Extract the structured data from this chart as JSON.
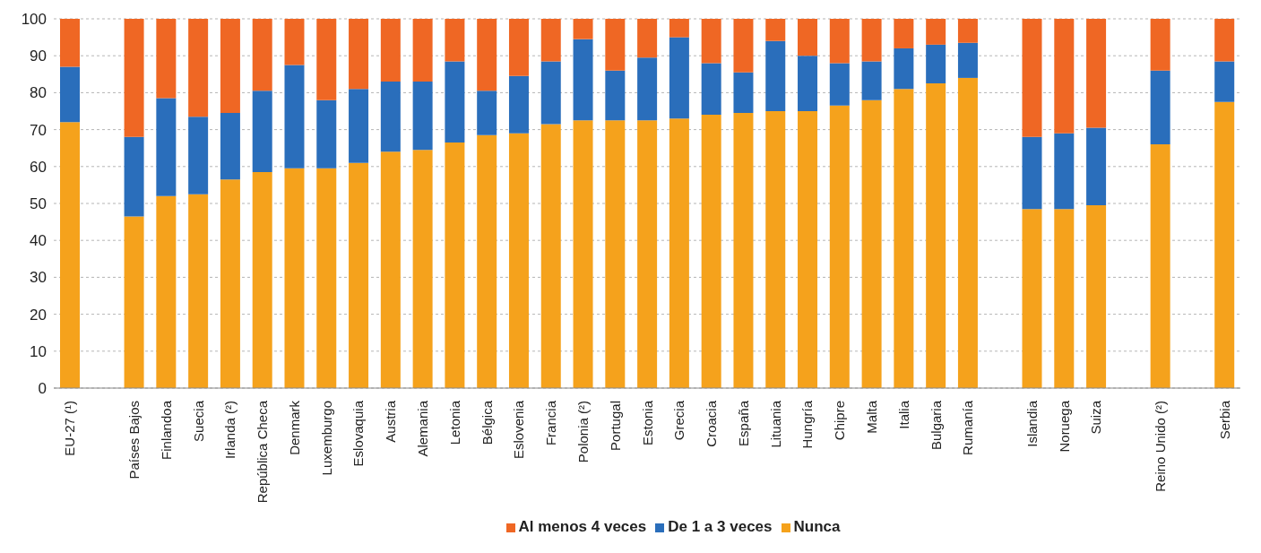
{
  "chart_data": {
    "type": "bar",
    "stacked": true,
    "categories": [
      "EU-27 (¹)",
      null,
      "Países Bajos",
      "Finlandoa",
      "Suecia",
      "Irlanda (²)",
      "República Checa",
      "Denmark",
      "Luxemburgo",
      "Eslovaquia",
      "Austria",
      "Alemania",
      "Letonia",
      "Bélgica",
      "Eslovenia",
      "Francia",
      "Polonia (²)",
      "Portugal",
      "Estonia",
      "Grecia",
      "Croacia",
      "España",
      "Lituania",
      "Hungría",
      "Chipre",
      "Malta",
      "Italia",
      "Bulgaria",
      "Rumanía",
      null,
      "Islandia",
      "Noruega",
      "Suiza",
      null,
      "Reino Unido (²)",
      null,
      "Serbia"
    ],
    "series": [
      {
        "name": "Nunca",
        "color": "#f5a21c",
        "values": [
          72,
          null,
          46.5,
          52,
          52.5,
          56.5,
          58.5,
          59.5,
          59.5,
          61,
          64,
          64.5,
          66.5,
          68.5,
          69,
          71.5,
          72.5,
          72.5,
          72.5,
          73,
          74,
          74.5,
          75,
          75,
          76.5,
          78,
          81,
          82.5,
          84,
          null,
          48.5,
          48.5,
          49.5,
          null,
          66,
          null,
          77.5
        ]
      },
      {
        "name": "De 1 a 3 veces",
        "color": "#2a6ebb",
        "values": [
          15,
          null,
          21.5,
          26.5,
          21,
          18,
          22,
          28,
          18.5,
          20,
          19,
          18.5,
          22,
          12,
          15.5,
          17,
          22,
          13.5,
          17,
          22,
          14,
          11,
          19,
          15,
          11.5,
          10.5,
          11,
          10.5,
          9.5,
          null,
          19.5,
          20.5,
          21,
          null,
          20,
          null,
          11
        ]
      },
      {
        "name": "Al menos 4 veces",
        "color": "#ef6724",
        "values": [
          13,
          null,
          32,
          21.5,
          26.5,
          25.5,
          19.5,
          12.5,
          22,
          19,
          17,
          17,
          11.5,
          19.5,
          15.5,
          11.5,
          5.5,
          14,
          10.5,
          5,
          12,
          14.5,
          6,
          10,
          12,
          11.5,
          8,
          7,
          6.5,
          null,
          32,
          31,
          29.5,
          null,
          14,
          null,
          11.5
        ]
      }
    ],
    "ylim": [
      0,
      100
    ],
    "yticks": [
      0,
      10,
      20,
      30,
      40,
      50,
      60,
      70,
      80,
      90,
      100
    ],
    "grid": "y",
    "legend": "bottom"
  }
}
